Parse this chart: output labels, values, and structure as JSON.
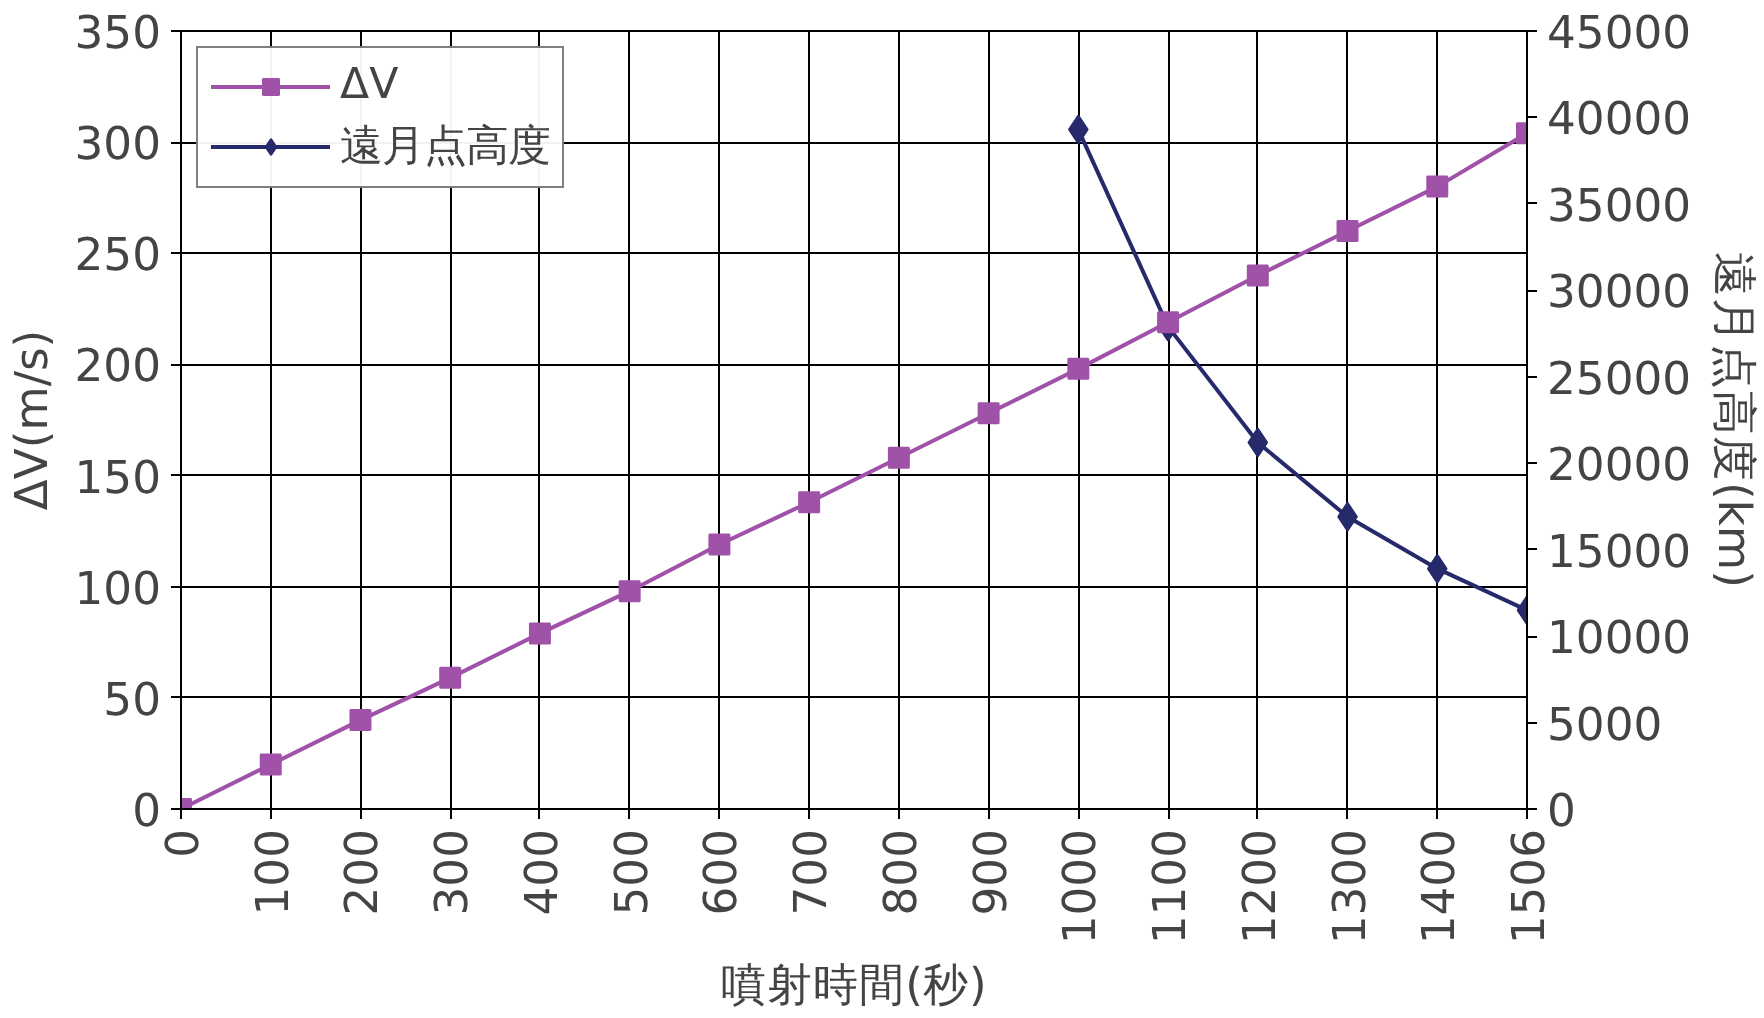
{
  "chart_data": {
    "type": "line",
    "xlabel": "噴射時間(秒)",
    "ylabel": "ΔV(m/s)",
    "y2label": "遠月点高度(km)",
    "categories": [
      "0",
      "100",
      "200",
      "300",
      "400",
      "500",
      "600",
      "700",
      "800",
      "900",
      "1000",
      "1100",
      "1200",
      "1300",
      "1400",
      "1506"
    ],
    "series": [
      {
        "name": "ΔV",
        "color": "#a052a8",
        "marker": "square",
        "values": [
          0,
          20,
          40,
          59,
          79,
          98,
          119,
          138,
          158,
          178,
          198,
          219,
          240,
          260,
          280,
          304
        ]
      },
      {
        "name": "遠月点高度",
        "color": "#262a6b",
        "marker": "diamond",
        "axis": "y2",
        "values": [
          null,
          null,
          null,
          null,
          null,
          null,
          null,
          null,
          null,
          null,
          39300,
          27900,
          21200,
          16900,
          13900,
          11500
        ]
      }
    ],
    "ylim": [
      0,
      350
    ],
    "yticks": [
      0,
      50,
      100,
      150,
      200,
      250,
      300,
      350
    ],
    "y2lim": [
      0,
      45000
    ],
    "y2ticks": [
      0,
      5000,
      10000,
      15000,
      20000,
      25000,
      30000,
      35000,
      40000,
      45000
    ],
    "grid": true,
    "legend": "top left",
    "line_style": "solid"
  }
}
